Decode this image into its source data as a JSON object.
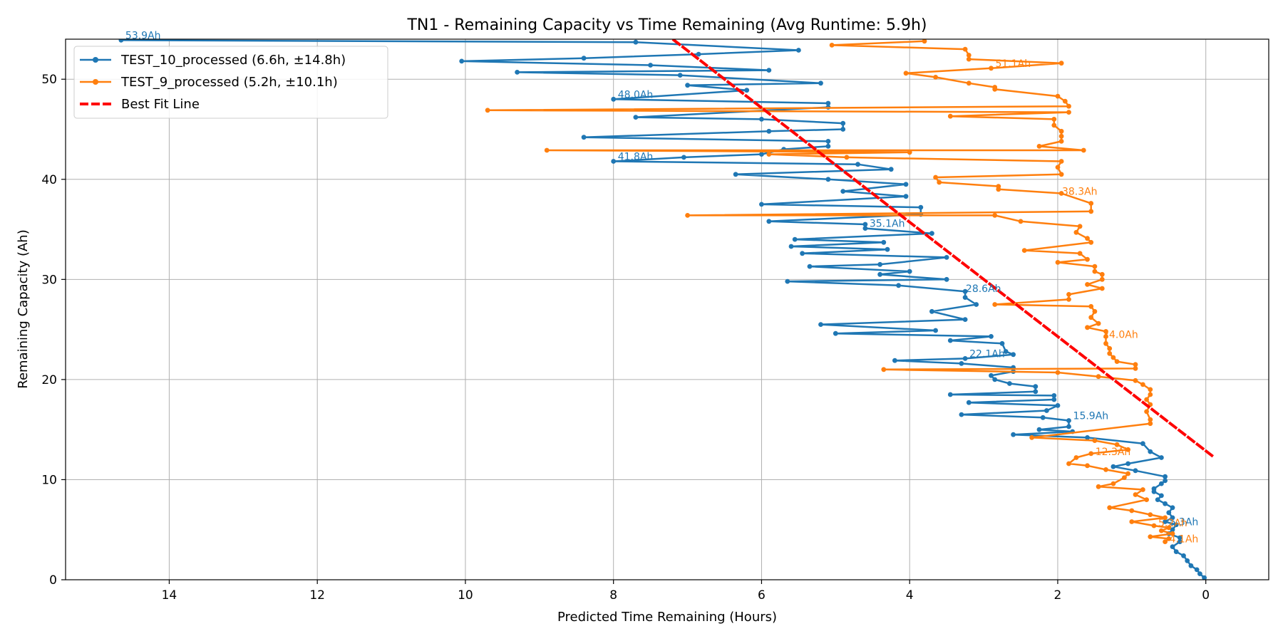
{
  "chart_data": {
    "type": "line",
    "title": "TN1 - Remaining Capacity vs Time Remaining (Avg Runtime: 5.9h)",
    "xlabel": "Predicted Time Remaining (Hours)",
    "ylabel": "Remaining Capacity (Ah)",
    "xlim": [
      15.4,
      -0.85
    ],
    "ylim": [
      0,
      54
    ],
    "x_inverted": true,
    "grid": true,
    "legend_position": "top-left",
    "x_ticks": [
      14,
      12,
      10,
      8,
      6,
      4,
      2,
      0
    ],
    "y_ticks": [
      0,
      10,
      20,
      30,
      40,
      50
    ],
    "series": [
      {
        "name": "TEST_10_processed (6.6h, ±14.8h)",
        "color": "#1f77b4",
        "points": [
          [
            14.65,
            53.9
          ],
          [
            7.7,
            53.7
          ],
          [
            5.5,
            52.9
          ],
          [
            6.85,
            52.5
          ],
          [
            8.4,
            52.1
          ],
          [
            10.05,
            51.8
          ],
          [
            7.5,
            51.4
          ],
          [
            5.9,
            50.9
          ],
          [
            9.3,
            50.7
          ],
          [
            7.1,
            50.4
          ],
          [
            5.2,
            49.6
          ],
          [
            7.0,
            49.4
          ],
          [
            6.2,
            48.9
          ],
          [
            8.0,
            48.0
          ],
          [
            5.1,
            47.6
          ],
          [
            5.1,
            47.2
          ],
          [
            7.7,
            46.2
          ],
          [
            6.0,
            46.0
          ],
          [
            4.9,
            45.6
          ],
          [
            4.9,
            45.0
          ],
          [
            5.9,
            44.8
          ],
          [
            8.4,
            44.2
          ],
          [
            5.1,
            43.8
          ],
          [
            5.1,
            43.3
          ],
          [
            5.7,
            43.0
          ],
          [
            6.0,
            42.5
          ],
          [
            7.05,
            42.2
          ],
          [
            8.0,
            41.8
          ],
          [
            4.7,
            41.5
          ],
          [
            4.25,
            41.0
          ],
          [
            6.35,
            40.5
          ],
          [
            5.1,
            40.0
          ],
          [
            4.05,
            39.5
          ],
          [
            4.9,
            38.8
          ],
          [
            4.05,
            38.3
          ],
          [
            6.0,
            37.5
          ],
          [
            3.85,
            37.2
          ],
          [
            3.85,
            36.5
          ],
          [
            5.9,
            35.8
          ],
          [
            4.6,
            35.5
          ],
          [
            4.6,
            35.1
          ],
          [
            3.7,
            34.6
          ],
          [
            5.55,
            34.0
          ],
          [
            4.35,
            33.7
          ],
          [
            5.6,
            33.3
          ],
          [
            4.3,
            33.0
          ],
          [
            5.45,
            32.6
          ],
          [
            3.5,
            32.2
          ],
          [
            4.4,
            31.5
          ],
          [
            5.35,
            31.3
          ],
          [
            4.0,
            30.8
          ],
          [
            4.4,
            30.5
          ],
          [
            3.5,
            30.0
          ],
          [
            5.65,
            29.8
          ],
          [
            4.15,
            29.4
          ],
          [
            3.25,
            28.8
          ],
          [
            3.25,
            28.2
          ],
          [
            3.1,
            27.5
          ],
          [
            3.7,
            26.8
          ],
          [
            3.25,
            26.0
          ],
          [
            5.2,
            25.5
          ],
          [
            3.65,
            24.9
          ],
          [
            5.0,
            24.6
          ],
          [
            2.9,
            24.3
          ],
          [
            3.45,
            23.9
          ],
          [
            2.75,
            23.6
          ],
          [
            2.7,
            22.8
          ],
          [
            2.6,
            22.5
          ],
          [
            3.25,
            22.1
          ],
          [
            4.2,
            21.9
          ],
          [
            3.3,
            21.6
          ],
          [
            2.6,
            21.2
          ],
          [
            2.6,
            20.8
          ],
          [
            2.9,
            20.4
          ],
          [
            2.85,
            20.0
          ],
          [
            2.65,
            19.6
          ],
          [
            2.3,
            19.3
          ],
          [
            2.3,
            18.8
          ],
          [
            3.45,
            18.5
          ],
          [
            2.05,
            18.4
          ],
          [
            2.05,
            18.0
          ],
          [
            3.2,
            17.7
          ],
          [
            2.0,
            17.4
          ],
          [
            2.15,
            16.9
          ],
          [
            3.3,
            16.5
          ],
          [
            2.2,
            16.2
          ],
          [
            1.85,
            15.9
          ],
          [
            1.85,
            15.3
          ],
          [
            2.25,
            15.0
          ],
          [
            1.8,
            14.8
          ],
          [
            2.6,
            14.5
          ],
          [
            1.6,
            14.2
          ],
          [
            0.85,
            13.6
          ],
          [
            0.75,
            12.8
          ],
          [
            0.6,
            12.2
          ],
          [
            1.05,
            11.6
          ],
          [
            1.25,
            11.3
          ],
          [
            0.95,
            10.9
          ],
          [
            0.55,
            10.3
          ],
          [
            0.55,
            9.9
          ],
          [
            0.6,
            9.6
          ],
          [
            0.7,
            9.1
          ],
          [
            0.7,
            8.8
          ],
          [
            0.6,
            8.4
          ],
          [
            0.65,
            8.0
          ],
          [
            0.55,
            7.6
          ],
          [
            0.45,
            7.2
          ],
          [
            0.5,
            6.7
          ],
          [
            0.45,
            6.2
          ],
          [
            0.55,
            5.8
          ],
          [
            0.4,
            5.5
          ],
          [
            0.45,
            5.0
          ],
          [
            0.5,
            4.6
          ],
          [
            0.35,
            4.2
          ],
          [
            0.35,
            3.8
          ],
          [
            0.45,
            3.3
          ],
          [
            0.4,
            2.8
          ],
          [
            0.3,
            2.4
          ],
          [
            0.25,
            1.9
          ],
          [
            0.2,
            1.4
          ],
          [
            0.12,
            1.0
          ],
          [
            0.08,
            0.6
          ],
          [
            0.02,
            0.2
          ]
        ]
      },
      {
        "name": "TEST_9_processed (5.2h, ±10.1h)",
        "color": "#ff7f0e",
        "points": [
          [
            3.8,
            53.8
          ],
          [
            5.05,
            53.4
          ],
          [
            3.25,
            53.0
          ],
          [
            3.2,
            52.4
          ],
          [
            3.2,
            52.0
          ],
          [
            1.95,
            51.6
          ],
          [
            2.9,
            51.1
          ],
          [
            4.05,
            50.6
          ],
          [
            3.65,
            50.2
          ],
          [
            3.2,
            49.6
          ],
          [
            2.85,
            49.2
          ],
          [
            2.85,
            49.0
          ],
          [
            2.0,
            48.3
          ],
          [
            1.9,
            47.8
          ],
          [
            1.85,
            47.3
          ],
          [
            9.7,
            46.9
          ],
          [
            1.85,
            46.7
          ],
          [
            3.45,
            46.3
          ],
          [
            2.05,
            46.0
          ],
          [
            2.05,
            45.4
          ],
          [
            1.95,
            44.8
          ],
          [
            1.95,
            44.3
          ],
          [
            1.95,
            43.8
          ],
          [
            2.25,
            43.3
          ],
          [
            1.65,
            42.9
          ],
          [
            8.9,
            42.9
          ],
          [
            4.0,
            42.7
          ],
          [
            5.9,
            42.5
          ],
          [
            4.85,
            42.2
          ],
          [
            1.95,
            41.8
          ],
          [
            2.0,
            41.2
          ],
          [
            1.95,
            40.5
          ],
          [
            3.65,
            40.2
          ],
          [
            3.6,
            39.7
          ],
          [
            2.8,
            39.3
          ],
          [
            2.8,
            39.0
          ],
          [
            1.95,
            38.6
          ],
          [
            1.55,
            37.6
          ],
          [
            1.55,
            36.8
          ],
          [
            7.0,
            36.4
          ],
          [
            2.85,
            36.4
          ],
          [
            2.5,
            35.8
          ],
          [
            1.7,
            35.3
          ],
          [
            1.75,
            34.7
          ],
          [
            1.6,
            34.1
          ],
          [
            1.55,
            33.7
          ],
          [
            2.45,
            32.9
          ],
          [
            1.7,
            32.6
          ],
          [
            1.6,
            32.0
          ],
          [
            2.0,
            31.7
          ],
          [
            1.5,
            31.3
          ],
          [
            1.5,
            30.8
          ],
          [
            1.4,
            30.5
          ],
          [
            1.4,
            30.0
          ],
          [
            1.6,
            29.5
          ],
          [
            1.4,
            29.1
          ],
          [
            1.85,
            28.5
          ],
          [
            1.85,
            28.0
          ],
          [
            2.85,
            27.5
          ],
          [
            1.55,
            27.3
          ],
          [
            1.5,
            26.8
          ],
          [
            1.55,
            26.2
          ],
          [
            1.45,
            25.6
          ],
          [
            1.6,
            25.2
          ],
          [
            1.35,
            24.8
          ],
          [
            1.35,
            24.3
          ],
          [
            1.35,
            23.6
          ],
          [
            1.3,
            23.1
          ],
          [
            1.3,
            22.6
          ],
          [
            1.25,
            22.2
          ],
          [
            1.2,
            21.8
          ],
          [
            0.95,
            21.5
          ],
          [
            0.95,
            21.1
          ],
          [
            4.35,
            21.0
          ],
          [
            2.0,
            20.7
          ],
          [
            1.45,
            20.3
          ],
          [
            0.95,
            19.9
          ],
          [
            0.85,
            19.5
          ],
          [
            0.75,
            19.0
          ],
          [
            0.75,
            18.5
          ],
          [
            0.8,
            18.0
          ],
          [
            0.75,
            17.5
          ],
          [
            0.8,
            16.8
          ],
          [
            0.75,
            16.0
          ],
          [
            0.75,
            15.6
          ],
          [
            2.35,
            14.2
          ],
          [
            1.5,
            13.9
          ],
          [
            1.2,
            13.5
          ],
          [
            1.05,
            13.0
          ],
          [
            1.55,
            12.6
          ],
          [
            1.75,
            12.2
          ],
          [
            1.85,
            11.6
          ],
          [
            1.6,
            11.4
          ],
          [
            1.35,
            11.0
          ],
          [
            1.05,
            10.6
          ],
          [
            1.1,
            10.2
          ],
          [
            1.25,
            9.6
          ],
          [
            1.45,
            9.3
          ],
          [
            0.85,
            9.0
          ],
          [
            0.95,
            8.5
          ],
          [
            0.8,
            8.0
          ],
          [
            1.3,
            7.2
          ],
          [
            1.0,
            6.9
          ],
          [
            0.75,
            6.5
          ],
          [
            0.55,
            6.2
          ],
          [
            1.0,
            5.8
          ],
          [
            0.7,
            5.4
          ],
          [
            0.5,
            5.2
          ],
          [
            0.6,
            4.9
          ],
          [
            0.45,
            4.6
          ],
          [
            0.75,
            4.3
          ],
          [
            0.5,
            4.1
          ],
          [
            0.55,
            3.8
          ]
        ]
      },
      {
        "name": "Best Fit Line",
        "color": "#ff0000",
        "style": "dashed",
        "points": [
          [
            7.2,
            54.0
          ],
          [
            -0.1,
            12.3
          ]
        ]
      }
    ],
    "annotations": [
      {
        "text": "53.9Ah",
        "x": 14.65,
        "y": 53.9,
        "color": "#1f77b4"
      },
      {
        "text": "48.0Ah",
        "x": 8.0,
        "y": 48.0,
        "color": "#1f77b4"
      },
      {
        "text": "41.8Ah",
        "x": 8.0,
        "y": 41.8,
        "color": "#1f77b4"
      },
      {
        "text": "35.1Ah",
        "x": 4.6,
        "y": 35.1,
        "color": "#1f77b4"
      },
      {
        "text": "28.6Ah",
        "x": 3.3,
        "y": 28.6,
        "color": "#1f77b4"
      },
      {
        "text": "22.1Ah",
        "x": 3.25,
        "y": 22.1,
        "color": "#1f77b4"
      },
      {
        "text": "15.9Ah",
        "x": 1.85,
        "y": 15.9,
        "color": "#1f77b4"
      },
      {
        "text": "5.3Ah",
        "x": 0.55,
        "y": 5.3,
        "color": "#1f77b4"
      },
      {
        "text": "51.1Ah",
        "x": 2.9,
        "y": 51.1,
        "color": "#ff7f0e"
      },
      {
        "text": "38.3Ah",
        "x": 2.0,
        "y": 38.3,
        "color": "#ff7f0e"
      },
      {
        "text": "24.0Ah",
        "x": 1.45,
        "y": 24.0,
        "color": "#ff7f0e"
      },
      {
        "text": "12.3Ah",
        "x": 1.55,
        "y": 12.3,
        "color": "#ff7f0e"
      },
      {
        "text": "5.2Ah",
        "x": 0.7,
        "y": 5.2,
        "color": "#ff7f0e"
      },
      {
        "text": "4.1Ah",
        "x": 0.55,
        "y": 3.6,
        "color": "#ff7f0e"
      }
    ]
  }
}
